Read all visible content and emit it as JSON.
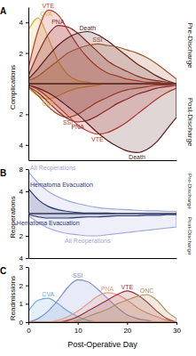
{
  "chart_data": [
    {
      "type": "area",
      "title": "A",
      "y_label": "Complications",
      "x": [
        0,
        2,
        4,
        6,
        8,
        10,
        12,
        14,
        16,
        18,
        20,
        22,
        24,
        26,
        28,
        30
      ],
      "xlim": [
        0,
        30
      ],
      "panels": [
        {
          "label": "Pre-Discharge",
          "ylim": [
            0,
            5
          ],
          "yticks": [
            2,
            4
          ],
          "series": [
            {
              "name": "CVA",
              "color": "#d9b23a",
              "values": [
                3.5,
                4.3,
                3.0,
                1.5,
                0.6,
                0.2,
                0.1,
                0,
                0,
                0,
                0,
                0,
                0,
                0,
                0,
                0
              ]
            },
            {
              "name": "VTE",
              "color": "#c0392b",
              "values": [
                1.0,
                3.5,
                4.8,
                4.5,
                3.5,
                2.5,
                1.7,
                1.1,
                0.7,
                0.5,
                0.3,
                0.2,
                0.1,
                0.1,
                0,
                0
              ]
            },
            {
              "name": "PNA",
              "color": "#8e2a2a",
              "values": [
                0.5,
                2.0,
                3.2,
                3.8,
                3.7,
                3.3,
                2.7,
                2.1,
                1.5,
                1.1,
                0.8,
                0.5,
                0.3,
                0.2,
                0.1,
                0
              ]
            },
            {
              "name": "Death",
              "color": "#5a1a1a",
              "values": [
                0.3,
                1.0,
                1.8,
                2.5,
                3.0,
                3.3,
                3.4,
                3.2,
                2.8,
                2.3,
                1.8,
                1.3,
                0.9,
                0.5,
                0.2,
                0
              ]
            },
            {
              "name": "SSI",
              "color": "#a0522d",
              "values": [
                0.2,
                0.5,
                1.0,
                1.5,
                2.0,
                2.3,
                2.5,
                2.6,
                2.5,
                2.4,
                2.2,
                2.0,
                1.7,
                1.3,
                0.8,
                0.3
              ]
            }
          ]
        },
        {
          "label": "Post-Discharge",
          "ylim": [
            5,
            0
          ],
          "yticks": [
            2,
            4
          ],
          "series": [
            {
              "name": "CVA",
              "color": "#d9b23a",
              "values": [
                0.3,
                0.8,
                1.0,
                0.8,
                0.5,
                0.3,
                0.2,
                0.1,
                0,
                0,
                0,
                0,
                0,
                0,
                0,
                0
              ]
            },
            {
              "name": "SSI",
              "color": "#a0522d",
              "values": [
                0.2,
                0.8,
                1.5,
                2.0,
                2.2,
                2.0,
                1.6,
                1.2,
                0.9,
                0.6,
                0.4,
                0.3,
                0.2,
                0.1,
                0.1,
                0
              ]
            },
            {
              "name": "PNA",
              "color": "#8e2a2a",
              "values": [
                0.2,
                0.6,
                1.2,
                1.8,
                2.3,
                2.5,
                2.4,
                2.1,
                1.7,
                1.3,
                1.0,
                0.7,
                0.5,
                0.3,
                0.2,
                0.1
              ]
            },
            {
              "name": "VTE",
              "color": "#c0392b",
              "values": [
                0.1,
                0.4,
                0.9,
                1.5,
                2.1,
                2.7,
                3.1,
                3.3,
                3.2,
                2.9,
                2.5,
                2.0,
                1.5,
                1.0,
                0.6,
                0.3
              ]
            },
            {
              "name": "Death",
              "color": "#5a1a1a",
              "values": [
                0.1,
                0.3,
                0.6,
                1.0,
                1.5,
                2.0,
                2.6,
                3.2,
                3.7,
                4.1,
                4.4,
                4.5,
                4.3,
                3.8,
                3.0,
                2.2
              ]
            }
          ]
        }
      ]
    },
    {
      "type": "area",
      "title": "B",
      "y_label": "Reoperations",
      "x": [
        0,
        2,
        4,
        6,
        8,
        10,
        12,
        14,
        16,
        18,
        20,
        22,
        24,
        26,
        28,
        30
      ],
      "xlim": [
        0,
        30
      ],
      "panels": [
        {
          "label": "Pre-Discharge",
          "ylim": [
            0,
            8
          ],
          "yticks": [
            4,
            8
          ],
          "series": [
            {
              "name": "All Reoperations",
              "color": "#9fa8da",
              "values": [
                7.5,
                5.5,
                4.0,
                3.0,
                2.3,
                1.8,
                1.4,
                1.1,
                0.9,
                0.8,
                0.7,
                0.6,
                0.5,
                0.5,
                0.4,
                0.4
              ]
            },
            {
              "name": "Hematoma Evacuation",
              "color": "#2a3a7a",
              "values": [
                4.5,
                2.5,
                1.3,
                0.7,
                0.4,
                0.2,
                0.1,
                0.1,
                0.1,
                0,
                0,
                0,
                0,
                0,
                0,
                0
              ]
            }
          ]
        },
        {
          "label": "Post-Discharge",
          "ylim": [
            4,
            0
          ],
          "yticks": [
            2,
            4
          ],
          "series": [
            {
              "name": "All Reoperations",
              "color": "#9fa8da",
              "values": [
                0.2,
                0.8,
                1.3,
                1.6,
                1.8,
                1.9,
                2.0,
                2.0,
                1.9,
                1.8,
                1.7,
                1.6,
                1.5,
                1.4,
                1.3,
                1.2
              ]
            },
            {
              "name": "Hematoma Evacuation",
              "color": "#2a3a7a",
              "values": [
                0.1,
                0.3,
                0.4,
                0.4,
                0.4,
                0.35,
                0.3,
                0.3,
                0.25,
                0.2,
                0.2,
                0.2,
                0.15,
                0.15,
                0.1,
                0.1
              ]
            }
          ]
        }
      ]
    },
    {
      "type": "area",
      "title": "C",
      "y_label": "Readmissions",
      "x_label": "Post-Operative Day",
      "x": [
        0,
        2,
        4,
        6,
        8,
        10,
        12,
        14,
        16,
        18,
        20,
        22,
        24,
        26,
        28,
        30
      ],
      "xlim": [
        0,
        30
      ],
      "xticks": [
        0,
        10,
        20,
        30
      ],
      "panels": [
        {
          "ylim": [
            0,
            3
          ],
          "yticks": [
            0,
            1,
            2,
            3
          ],
          "series": [
            {
              "name": "CVA",
              "color": "#6fa8dc",
              "values": [
                0.6,
                1.2,
                1.3,
                1.0,
                0.6,
                0.3,
                0.1,
                0,
                0,
                0,
                0,
                0,
                0,
                0,
                0,
                0
              ]
            },
            {
              "name": "SSI",
              "color": "#7f8fd0",
              "values": [
                0,
                0.2,
                0.6,
                1.2,
                1.9,
                2.3,
                2.2,
                1.8,
                1.3,
                0.8,
                0.4,
                0.2,
                0.1,
                0,
                0,
                0
              ]
            },
            {
              "name": "PNA",
              "color": "#e39a86",
              "values": [
                0,
                0,
                0,
                0.1,
                0.3,
                0.6,
                1.0,
                1.4,
                1.6,
                1.5,
                1.2,
                0.8,
                0.5,
                0.3,
                0.1,
                0
              ]
            },
            {
              "name": "VTE",
              "color": "#a03030",
              "values": [
                0,
                0,
                0,
                0,
                0.1,
                0.3,
                0.6,
                0.9,
                1.2,
                1.5,
                1.7,
                1.5,
                1.1,
                0.6,
                0.2,
                0
              ]
            },
            {
              "name": "ONC",
              "color": "#b09060",
              "values": [
                0,
                0,
                0,
                0,
                0,
                0.1,
                0.3,
                0.5,
                0.7,
                1.0,
                1.2,
                1.4,
                1.5,
                1.2,
                0.6,
                0.2
              ]
            }
          ]
        }
      ]
    }
  ]
}
